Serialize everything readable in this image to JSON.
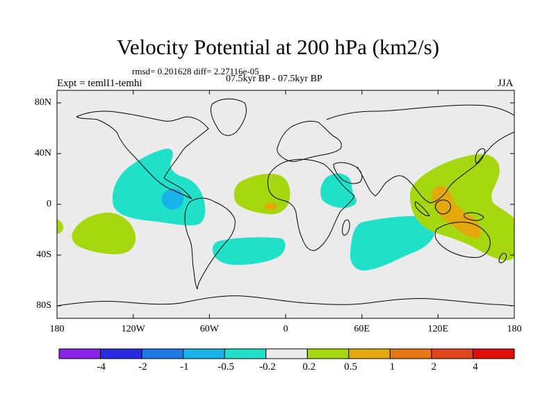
{
  "title": "Velocity Potential at 200 hPa (km2/s)",
  "stats_line": "rmsd= 0.201628 diff= 2.27116e-05",
  "period_line": "07.5kyr BP - 07.5kyr BP",
  "experiment_label": "Expt = temlI1-temhi",
  "season_label": "JJA",
  "map": {
    "projection": "cylindrical-equidistant",
    "y_ticks": [
      "80N",
      "40N",
      "0",
      "40S",
      "80S"
    ],
    "x_ticks": [
      "180",
      "120W",
      "60W",
      "0",
      "60E",
      "120E",
      "180"
    ],
    "ocean_color": "#ebebeb",
    "anomaly_regions": [
      {
        "label": "Central America / East Pacific",
        "category": "-0.5 to -0.2",
        "color": "#1fe0c8"
      },
      {
        "label": "Eastern Pacific core",
        "category": "-1 to -0.5",
        "color": "#19b3ea"
      },
      {
        "label": "South Atlantic",
        "category": "-0.5 to -0.2",
        "color": "#1fe0c8"
      },
      {
        "label": "East Africa / Arabian Sea",
        "category": "-0.5 to -0.2",
        "color": "#1fe0c8"
      },
      {
        "label": "South Indian Ocean",
        "category": "-0.5 to -0.2",
        "color": "#1fe0c8"
      },
      {
        "label": "South Pacific",
        "category": "0.2 to 0.5",
        "color": "#a6d60e"
      },
      {
        "label": "Tropical Atlantic / West Africa",
        "category": "0.2 to 0.5",
        "color": "#a6d60e"
      },
      {
        "label": "West Pacific / Maritime Continent",
        "category": "0.2 to 0.5",
        "color": "#a6d60e"
      },
      {
        "label": "Maritime Continent core",
        "category": "0.5 to 1",
        "color": "#e3a80b"
      }
    ]
  },
  "colorbar": {
    "colors": [
      "#8c21e8",
      "#2a2ae0",
      "#1e78e6",
      "#19b3ea",
      "#1fe0c8",
      "#ebebeb",
      "#a6d60e",
      "#e3a80b",
      "#e57815",
      "#e0461a",
      "#e00d0d"
    ],
    "labels": [
      "-4",
      "-2",
      "-1",
      "-0.5",
      "-0.2",
      "0.2",
      "0.5",
      "1",
      "2",
      "4"
    ]
  }
}
